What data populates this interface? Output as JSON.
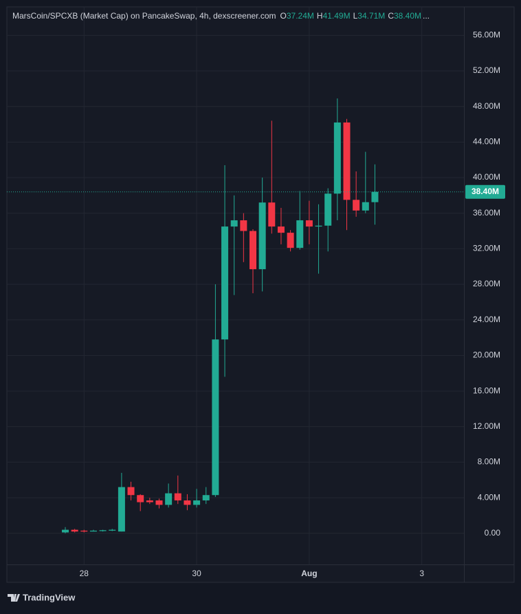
{
  "chart_data": {
    "type": "candlestick",
    "title": "MarsCoin/SPCXB (Market Cap) on PancakeSwap, 4h, dexscreener.com",
    "ohlc_legend": [
      {
        "label": "O",
        "value": "37.24M"
      },
      {
        "label": "H",
        "value": "41.49M"
      },
      {
        "label": "L",
        "value": "34.71M"
      },
      {
        "label": "C",
        "value": "38.40M"
      }
    ],
    "ellipsis": "...",
    "categories": [
      null,
      null,
      "28",
      null,
      null,
      null,
      null,
      null,
      null,
      null,
      null,
      null,
      null,
      null,
      "30",
      null,
      null,
      null,
      null,
      null,
      null,
      null,
      null,
      null,
      null,
      null,
      "Aug",
      null,
      null,
      null,
      null,
      null,
      null,
      null,
      null,
      null,
      null,
      null,
      "3"
    ],
    "open": [
      0.1,
      0.4,
      0.3,
      0.2,
      0.25,
      0.3,
      0.2,
      5.2,
      4.3,
      3.7,
      3.7,
      3.2,
      4.5,
      3.7,
      3.2,
      3.7,
      4.3,
      21.8,
      34.5,
      35.2,
      34.0,
      29.7,
      37.2,
      34.5,
      33.8,
      32.1,
      35.2,
      34.5,
      34.6,
      38.2,
      46.2,
      37.5,
      36.3,
      37.24,
      null,
      null,
      null,
      null,
      null
    ],
    "high": [
      0.7,
      0.5,
      0.4,
      0.4,
      0.4,
      0.5,
      6.8,
      5.8,
      4.4,
      4.0,
      3.9,
      5.6,
      6.5,
      4.4,
      5.0,
      5.2,
      28.0,
      41.4,
      38.0,
      36.0,
      34.2,
      40.0,
      46.4,
      36.6,
      34.1,
      38.5,
      37.4,
      37.0,
      38.8,
      48.9,
      46.6,
      40.7,
      42.9,
      41.49,
      null,
      null,
      null,
      null,
      null
    ],
    "low": [
      0.0,
      0.1,
      0.1,
      0.2,
      0.2,
      0.25,
      0.2,
      3.7,
      2.5,
      3.3,
      2.8,
      2.9,
      3.3,
      2.6,
      2.9,
      3.3,
      4.1,
      17.6,
      26.8,
      30.5,
      27.0,
      27.2,
      33.7,
      32.5,
      31.7,
      31.9,
      32.5,
      29.2,
      31.7,
      35.2,
      34.1,
      35.6,
      36.0,
      34.71,
      null,
      null,
      null,
      null,
      null
    ],
    "close": [
      0.4,
      0.2,
      0.2,
      0.3,
      0.35,
      0.4,
      5.2,
      4.3,
      3.5,
      3.5,
      3.2,
      4.5,
      3.7,
      3.2,
      3.7,
      4.3,
      21.8,
      34.5,
      35.2,
      34.0,
      29.7,
      37.2,
      34.5,
      33.8,
      32.1,
      35.2,
      34.5,
      34.6,
      38.2,
      46.2,
      37.5,
      36.3,
      37.24,
      38.4,
      null,
      null,
      null,
      null,
      null
    ],
    "up_color": "#22ab94",
    "down_color": "#f23645",
    "ylim": [
      -3.5,
      59.2
    ],
    "yticks": [
      {
        "value": 0,
        "label": "0.00"
      },
      {
        "value": 4,
        "label": "4.00M"
      },
      {
        "value": 8,
        "label": "8.00M"
      },
      {
        "value": 12,
        "label": "12.00M"
      },
      {
        "value": 16,
        "label": "16.00M"
      },
      {
        "value": 20,
        "label": "20.00M"
      },
      {
        "value": 24,
        "label": "24.00M"
      },
      {
        "value": 28,
        "label": "28.00M"
      },
      {
        "value": 32,
        "label": "32.00M"
      },
      {
        "value": 36,
        "label": "36.00M"
      },
      {
        "value": 40,
        "label": "40.00M"
      },
      {
        "value": 44,
        "label": "44.00M"
      },
      {
        "value": 48,
        "label": "48.00M"
      },
      {
        "value": 52,
        "label": "52.00M"
      },
      {
        "value": 56,
        "label": "56.00M"
      }
    ],
    "last_price": {
      "value": 38.4,
      "label": "38.40M"
    },
    "grid": true
  },
  "footer": {
    "brand": "TradingView"
  }
}
